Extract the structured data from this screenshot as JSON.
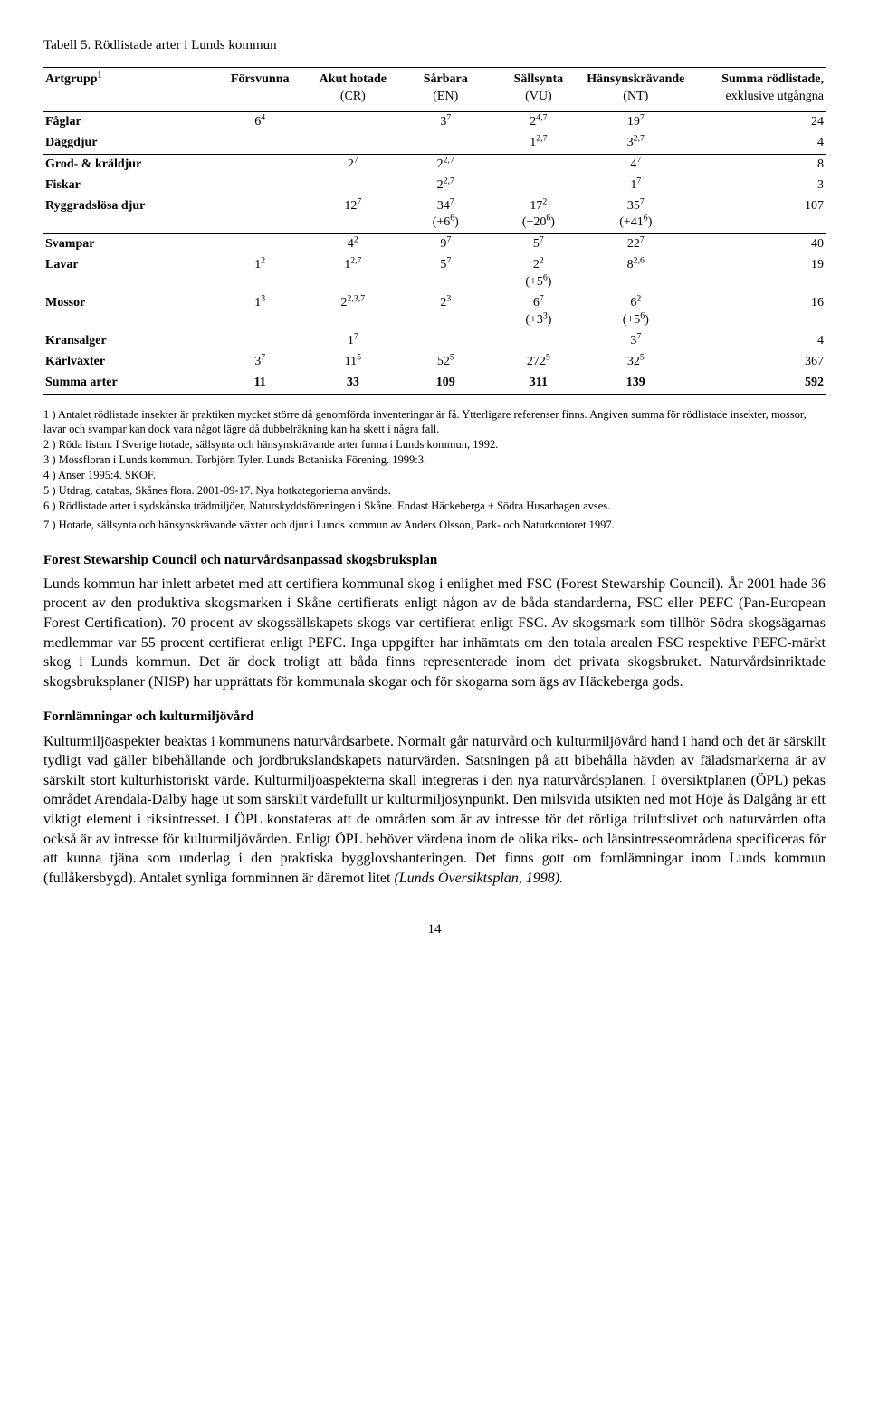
{
  "caption": "Tabell 5. Rödlistade arter i Lunds kommun",
  "headers": {
    "c0": "Artgrupp",
    "c0_sup": "1",
    "c1": "Försvunna",
    "c2a": "Akut hotade",
    "c2b": "(CR)",
    "c3a": "Sårbara",
    "c3b": "(EN)",
    "c4a": "Sällsynta",
    "c4b": "(VU)",
    "c5a": "Hänsynskrävande",
    "c5b": "(NT)",
    "c6a": "Summa rödlistade,",
    "c6b": "exklusive utgångna"
  },
  "rows": {
    "faglar": {
      "label": "Fåglar",
      "c1": "6",
      "c1s": "4",
      "c2": "",
      "c3": "3",
      "c3s": "7",
      "c4": "2",
      "c4s": "4,7",
      "c5": "19",
      "c5s": "7",
      "c6": "24"
    },
    "daggdjur": {
      "label": "Däggdjur",
      "c4": "1",
      "c4s": "2,7",
      "c5": "3",
      "c5s": "2,7",
      "c6": "4"
    },
    "grod": {
      "label": "Grod- & kräldjur",
      "c2": "2",
      "c2s": "7",
      "c3": "2",
      "c3s": "2,7",
      "c5": "4",
      "c5s": "7",
      "c6": "8"
    },
    "fiskar": {
      "label": "Fiskar",
      "c3": "2",
      "c3s": "2,7",
      "c5": "1",
      "c5s": "7",
      "c6": "3"
    },
    "rygg": {
      "label": "Ryggradslösa djur",
      "c2": "12",
      "c2s": "7",
      "c3": "34",
      "c3s": "7",
      "c3b": "(+6",
      "c3bs": "6",
      "c3bc": ")",
      "c4": "17",
      "c4s": "2",
      "c4b": "(+20",
      "c4bs": "6",
      "c4bc": ")",
      "c5": "35",
      "c5s": "7",
      "c5b": "(+41",
      "c5bs": "6",
      "c5bc": ")",
      "c6": "107"
    },
    "svampar": {
      "label": "Svampar",
      "c2": "4",
      "c2s": "2",
      "c3": "9",
      "c3s": "7",
      "c4": "5",
      "c4s": "7",
      "c5": "22",
      "c5s": "7",
      "c6": "40"
    },
    "lavar": {
      "label": "Lavar",
      "c1": "1",
      "c1s": "2",
      "c2": "1",
      "c2s": "2,7",
      "c3": "5",
      "c3s": "7",
      "c4": "2",
      "c4s": "2",
      "c4b": "(+5",
      "c4bs": "6",
      "c4bc": ")",
      "c5": "8",
      "c5s": "2,6",
      "c6": "19"
    },
    "mossor": {
      "label": "Mossor",
      "c1": "1",
      "c1s": "3",
      "c2": "2",
      "c2s": "2,3,7",
      "c3": "2",
      "c3s": "3",
      "c4": "6",
      "c4s": "7",
      "c4b": "(+3",
      "c4bs": "3",
      "c4bc": ")",
      "c5": "6",
      "c5s": "2",
      "c5b": "(+5",
      "c5bs": "6",
      "c5bc": ")",
      "c6": "16"
    },
    "kransalger": {
      "label": "Kransalger",
      "c2": "1",
      "c2s": "7",
      "c5": "3",
      "c5s": "7",
      "c6": "4"
    },
    "karlvaxter": {
      "label": "Kärlväxter",
      "c1": "3",
      "c1s": "7",
      "c2": "11",
      "c2s": "5",
      "c3": "52",
      "c3s": "5",
      "c4": "272",
      "c4s": "5",
      "c5": "32",
      "c5s": "5",
      "c6": "367"
    },
    "summa": {
      "label": "Summa arter",
      "c1": "11",
      "c2": "33",
      "c3": "109",
      "c4": "311",
      "c5": "139",
      "c6": "592"
    }
  },
  "footnotes": {
    "f1": "1 )   Antalet rödlistade insekter är praktiken mycket större då genomförda inventeringar är få. Ytterligare referenser finns. Angiven summa för rödlistade insekter, mossor, lavar och svampar kan dock vara något lägre då dubbelräkning kan ha skett i några fall.",
    "f2": "2 )   Röda listan. I Sverige hotade, sällsynta och hänsynskrävande arter funna i Lunds kommun, 1992.",
    "f3": "3 )   Mossfloran i Lunds kommun. Torbjörn Tyler. Lunds Botaniska Förening. 1999:3.",
    "f4": "4 )   Anser 1995:4. SKOF.",
    "f5": "5 )   Utdrag, databas, Skånes flora. 2001-09-17. Nya hotkategorierna används.",
    "f6": "6 )   Rödlistade arter i sydskånska trädmiljöer, Naturskyddsföreningen i Skåne. Endast Häckeberga + Södra Husarhagen avses.",
    "f7": "7 )   Hotade, sällsynta och hänsynskrävande växter och djur i Lunds kommun av Anders Olsson, Park- och Naturkontoret 1997."
  },
  "section1": {
    "heading": "Forest Stewarship Council och naturvårdsanpassad skogsbruksplan",
    "body": "Lunds kommun har inlett arbetet med att certifiera kommunal skog i enlighet med FSC (Forest Stewarship Council). År 2001 hade 36 procent av den produktiva skogsmarken i Skåne certifierats enligt någon av de båda standarderna, FSC eller PEFC (Pan-European Forest Certification). 70 procent av skogssällskapets skogs var certifierat enligt FSC. Av skogsmark som tillhör Södra skogsägarnas medlemmar var 55 procent certifierat enligt PEFC. Inga uppgifter har inhämtats om den totala arealen FSC respektive PEFC-märkt skog i Lunds kommun. Det är dock troligt att båda finns representerade inom det privata skogsbruket. Naturvårdsinriktade skogsbruksplaner (NISP) har upprättats för kommunala skogar och för skogarna som ägs av Häckeberga gods."
  },
  "section2": {
    "heading": "Fornlämningar och kulturmiljövård",
    "body_a": "Kulturmiljöaspekter beaktas i kommunens naturvårdsarbete. Normalt går naturvård och kulturmiljövård hand i hand och det är särskilt tydligt vad gäller bibehållande och jordbrukslandskapets naturvärden. Satsningen på att bibehålla hävden av fäladsmarkerna är av särskilt stort kulturhistoriskt värde. Kulturmiljöaspekterna skall integreras i den nya naturvårdsplanen. I översiktplanen (ÖPL) pekas området Arendala-Dalby hage ut som särskilt värdefullt ur kulturmiljösynpunkt. Den milsvida utsikten ned mot Höje ås Dalgång är ett viktigt element i riksintresset. I ÖPL konstateras att de områden som är av intresse för det rörliga friluftslivet och naturvården ofta också är av intresse för kulturmiljövården. Enligt ÖPL behöver värdena inom de olika riks- och länsintresseområdena specificeras för att kunna tjäna som underlag i den praktiska bygglovshanteringen. Det finns gott om fornlämningar inom Lunds kommun (fullåkersbygd). Antalet synliga fornminnen är däremot litet ",
    "body_b_italic": "(Lunds Översiktsplan, 1998)."
  },
  "page_num": "14"
}
